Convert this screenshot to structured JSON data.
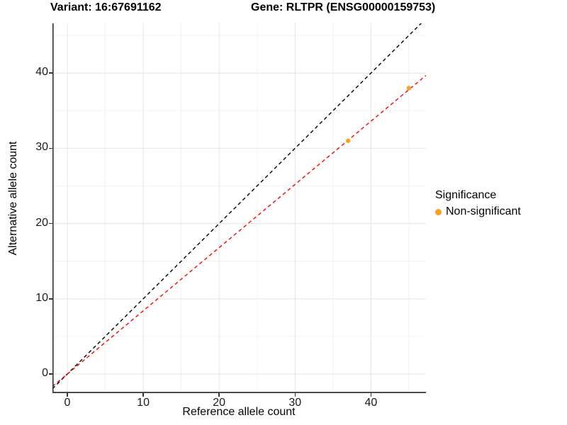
{
  "header": {
    "variant_title": "Variant: 16:67691162",
    "gene_title": "Gene: RLTPR (ENSG00000159753)"
  },
  "chart_data": {
    "type": "scatter",
    "xlabel": "Reference allele count",
    "ylabel": "Alternative allele count",
    "xlim": [
      -1.96,
      47.25
    ],
    "ylim": [
      -2.54,
      46.61
    ],
    "x_major_ticks": [
      0,
      10,
      20,
      30,
      40
    ],
    "x_minor_ticks": [
      5,
      15,
      25,
      35,
      45
    ],
    "y_major_ticks": [
      0,
      10,
      20,
      30,
      40
    ],
    "y_minor_ticks": [
      5,
      15,
      25,
      35,
      45
    ],
    "grid": "on",
    "points": [
      {
        "x": 37,
        "y": 31,
        "series": "Non-significant"
      },
      {
        "x": 45,
        "y": 38,
        "series": "Non-significant"
      }
    ],
    "lines": [
      {
        "name": "identity-line",
        "slope": 1.0,
        "intercept": 0,
        "color": "#000000",
        "style": "dashed"
      },
      {
        "name": "fit-line",
        "slope": 0.84,
        "intercept": 0,
        "color": "#FF0000",
        "style": "dashed"
      }
    ],
    "legend": {
      "position": "right",
      "title": "Significance",
      "items": [
        {
          "label": "Non-significant",
          "color": "#F8A028"
        }
      ]
    },
    "colors": {
      "point": "#F8A028",
      "grid_major": "#E4E4E4",
      "grid_minor": "#F1F1F1",
      "axis_line": "#333333",
      "tick_label": "#1a1a1a"
    }
  }
}
